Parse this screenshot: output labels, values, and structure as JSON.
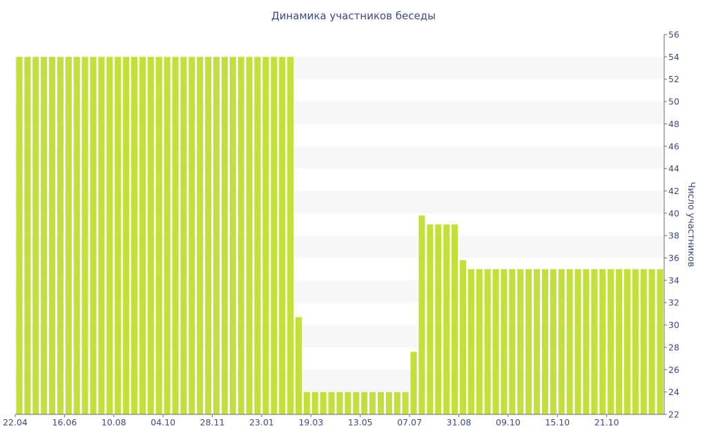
{
  "chart_data": {
    "type": "bar",
    "title": "Динамика участников беседы",
    "xlabel": "",
    "ylabel": "Число участников",
    "ylim": [
      22,
      56
    ],
    "y_ticks": [
      22,
      24,
      26,
      28,
      30,
      32,
      34,
      36,
      38,
      40,
      42,
      44,
      46,
      48,
      50,
      52,
      54,
      56
    ],
    "y_axis_position": "right",
    "x_tick_labels": [
      {
        "index": 0,
        "label": "22.04"
      },
      {
        "index": 6,
        "label": "16.06"
      },
      {
        "index": 12,
        "label": "10.08"
      },
      {
        "index": 18,
        "label": "04.10"
      },
      {
        "index": 24,
        "label": "28.11"
      },
      {
        "index": 30,
        "label": "23.01"
      },
      {
        "index": 36,
        "label": "19.03"
      },
      {
        "index": 42,
        "label": "13.05"
      },
      {
        "index": 48,
        "label": "07.07"
      },
      {
        "index": 54,
        "label": "31.08"
      },
      {
        "index": 60,
        "label": "09.10"
      },
      {
        "index": 66,
        "label": "15.10"
      },
      {
        "index": 72,
        "label": "21.10"
      }
    ],
    "values": [
      54,
      54,
      54,
      54,
      54,
      54,
      54,
      54,
      54,
      54,
      54,
      54,
      54,
      54,
      54,
      54,
      54,
      54,
      54,
      54,
      54,
      54,
      54,
      54,
      54,
      54,
      54,
      54,
      54,
      54,
      54,
      54,
      54,
      54,
      30.7,
      24,
      24,
      24,
      24,
      24,
      24,
      24,
      24,
      24,
      24,
      24,
      24,
      24,
      27.6,
      39.8,
      39,
      39,
      39,
      39,
      35.8,
      35,
      35,
      35,
      35,
      35,
      35,
      35,
      35,
      35,
      35,
      35,
      35,
      35,
      35,
      35,
      35,
      35,
      35,
      35,
      35,
      35,
      35,
      35,
      35
    ],
    "grid": "alternating horizontal bands",
    "colors": {
      "bar": "#c3e03a",
      "band": "#f7f7f7",
      "text": "#3b4a8a",
      "axis": "#6a6a6a"
    }
  }
}
